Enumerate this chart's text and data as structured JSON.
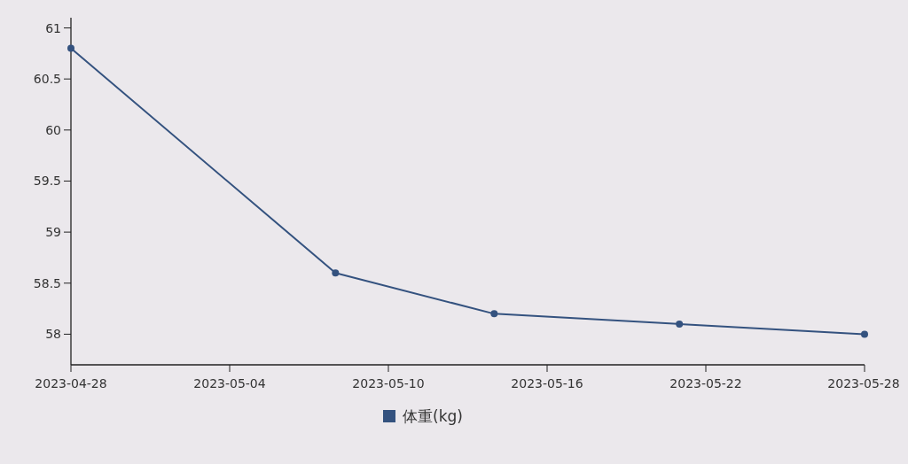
{
  "chart_data": {
    "type": "line",
    "x": [
      "2023-04-28",
      "2023-05-08",
      "2023-05-14",
      "2023-05-21",
      "2023-05-28"
    ],
    "series": [
      {
        "name": "体重(kg)",
        "color": "#34527f",
        "values": [
          60.8,
          58.6,
          58.2,
          58.1,
          58.0
        ]
      }
    ],
    "xlim": [
      "2023-04-28",
      "2023-05-28"
    ],
    "ylim": [
      57.7,
      61.1
    ],
    "xticks": [
      "2023-04-28",
      "2023-05-04",
      "2023-05-10",
      "2023-05-16",
      "2023-05-22",
      "2023-05-28"
    ],
    "yticks": [
      58,
      58.5,
      59,
      59.5,
      60,
      60.5,
      61
    ],
    "marker": "circle",
    "line_style": "solid",
    "legend": "bottom",
    "grid": false
  }
}
